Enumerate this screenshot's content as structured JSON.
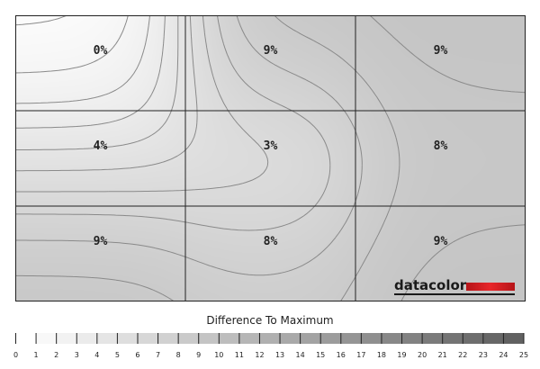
{
  "chart_data": {
    "type": "heatmap",
    "title": "Difference To Maximum",
    "rows": 3,
    "cols": 3,
    "values": [
      [
        0,
        9,
        9
      ],
      [
        4,
        3,
        8
      ],
      [
        9,
        8,
        9
      ]
    ],
    "labels": [
      [
        "0%",
        "9%",
        "9%"
      ],
      [
        "4%",
        "3%",
        "8%"
      ],
      [
        "9%",
        "8%",
        "9%"
      ]
    ],
    "scale": {
      "min": 0,
      "max": 25,
      "ticks": [
        0,
        1,
        2,
        3,
        4,
        5,
        6,
        7,
        8,
        9,
        10,
        11,
        12,
        13,
        14,
        15,
        16,
        17,
        18,
        19,
        20,
        21,
        22,
        23,
        24,
        25
      ]
    },
    "legend_placement": "bottom"
  },
  "brand": {
    "name": "datacolor",
    "accent": "#e8262a"
  },
  "colors": {
    "low": "#ffffff",
    "high": "#5a5a5a",
    "contour": "#8a8a8a",
    "grid": "#222222"
  }
}
